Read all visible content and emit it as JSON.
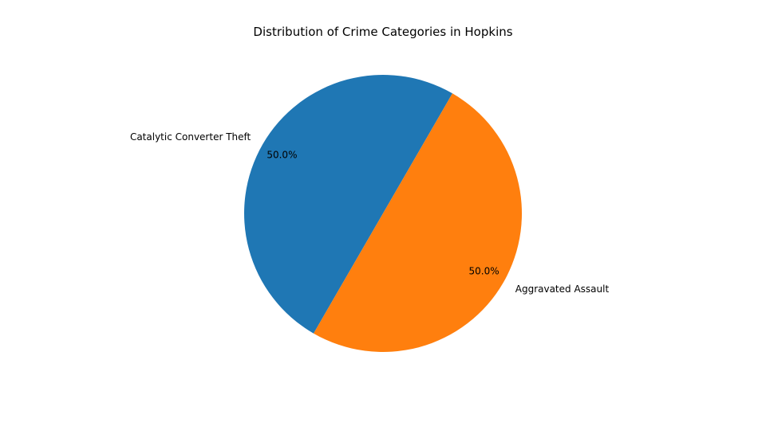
{
  "chart_data": {
    "type": "pie",
    "title": "Distribution of Crime Categories in Hopkins",
    "categories": [
      "Catalytic Converter Theft",
      "Aggravated Assault"
    ],
    "values": [
      1,
      1
    ],
    "percent_labels": [
      "50.0%",
      "50.0%"
    ],
    "colors": [
      "#1f77b4",
      "#ff7f0e"
    ],
    "start_angle_deg": 60,
    "direction": "counterclockwise",
    "legend": "none"
  }
}
